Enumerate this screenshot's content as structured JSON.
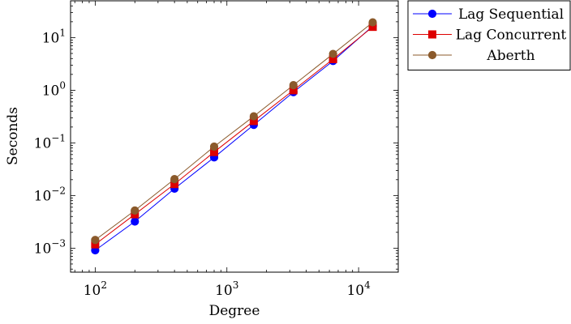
{
  "chart_data": {
    "type": "line",
    "x_scale": "log",
    "y_scale": "log",
    "xlabel": "Degree",
    "ylabel": "Seconds",
    "xlim": [
      65,
      20000
    ],
    "ylim": [
      0.00035,
      50
    ],
    "x_ticks": [
      {
        "value": 100,
        "base": "10",
        "exp": "2"
      },
      {
        "value": 1000,
        "base": "10",
        "exp": "3"
      },
      {
        "value": 10000,
        "base": "10",
        "exp": "4"
      }
    ],
    "y_ticks": [
      {
        "value": 0.001,
        "base": "10",
        "exp": "−3"
      },
      {
        "value": 0.01,
        "base": "10",
        "exp": "−2"
      },
      {
        "value": 0.1,
        "base": "10",
        "exp": "−1"
      },
      {
        "value": 1,
        "base": "10",
        "exp": "0"
      },
      {
        "value": 10,
        "base": "10",
        "exp": "1"
      }
    ],
    "grid": false,
    "legend_position": "outside-top-right",
    "x": [
      100,
      200,
      400,
      800,
      1600,
      3200,
      6400,
      12800
    ],
    "series": [
      {
        "name": "Lag Sequential",
        "color": "#0000ff",
        "marker": "circle",
        "values": [
          0.00091,
          0.0032,
          0.0135,
          0.053,
          0.22,
          0.92,
          3.6,
          16.5
        ]
      },
      {
        "name": "Lag Concurrent",
        "color": "#dd0000",
        "marker": "square",
        "values": [
          0.00118,
          0.0044,
          0.0165,
          0.067,
          0.26,
          1.0,
          3.9,
          16.0
        ]
      },
      {
        "name": "Aberth",
        "color": "#8b5a2b",
        "marker": "circle",
        "values": [
          0.00143,
          0.0052,
          0.0205,
          0.085,
          0.32,
          1.25,
          4.9,
          19.5
        ]
      }
    ]
  }
}
